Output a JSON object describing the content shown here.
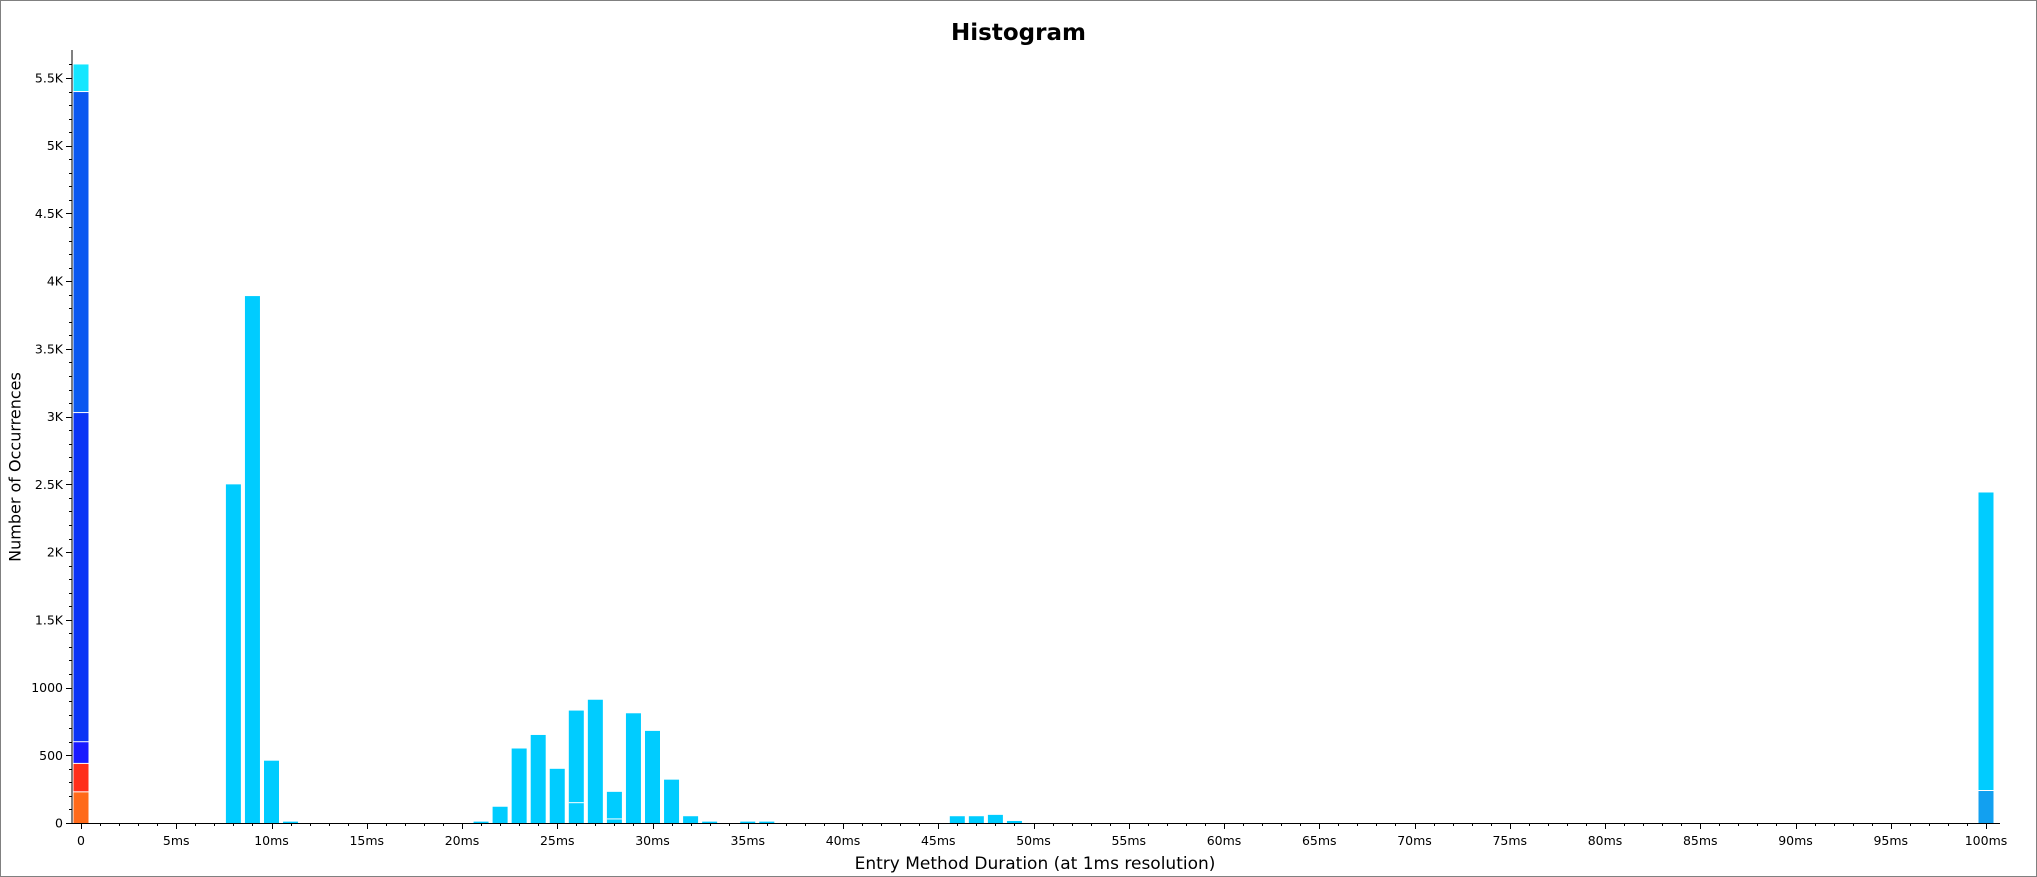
{
  "chart_data": {
    "type": "bar",
    "stacked": true,
    "title": "Histogram",
    "xlabel": "Entry Method Duration (at 1ms resolution)",
    "ylabel": "Number of Occurrences",
    "ylim": [
      0,
      5600
    ],
    "grid": false,
    "x_ticks": [
      "0",
      "5ms",
      "10ms",
      "15ms",
      "20ms",
      "25ms",
      "30ms",
      "35ms",
      "40ms",
      "45ms",
      "50ms",
      "55ms",
      "60ms",
      "65ms",
      "70ms",
      "75ms",
      "80ms",
      "85ms",
      "90ms",
      "95ms",
      "100ms"
    ],
    "y_ticks": [
      "0",
      "500",
      "1000",
      "1.5K",
      "2K",
      "2.5K",
      "3K",
      "3.5K",
      "4K",
      "4.5K",
      "5K",
      "5.5K"
    ],
    "y_tick_values": [
      0,
      500,
      1000,
      1500,
      2000,
      2500,
      3000,
      3500,
      4000,
      4500,
      5000,
      5500
    ],
    "bars": [
      {
        "x": 0,
        "segments": [
          {
            "value": 230,
            "color": "#ff6a1a"
          },
          {
            "value": 210,
            "color": "#ff2e1a"
          },
          {
            "value": 160,
            "color": "#1a1aff"
          },
          {
            "value": 2430,
            "color": "#0b34f5"
          },
          {
            "value": 2370,
            "color": "#0b58f0"
          },
          {
            "value": 200,
            "color": "#14e6ff"
          }
        ]
      },
      {
        "x": 8,
        "segments": [
          {
            "value": 2500,
            "color": "#00ccff"
          }
        ]
      },
      {
        "x": 9,
        "segments": [
          {
            "value": 3890,
            "color": "#00ccff"
          }
        ]
      },
      {
        "x": 10,
        "segments": [
          {
            "value": 460,
            "color": "#00ccff"
          }
        ]
      },
      {
        "x": 11,
        "segments": [
          {
            "value": 10,
            "color": "#00ccff"
          }
        ]
      },
      {
        "x": 21,
        "segments": [
          {
            "value": 10,
            "color": "#00ccff"
          }
        ]
      },
      {
        "x": 22,
        "segments": [
          {
            "value": 120,
            "color": "#00ccff"
          }
        ]
      },
      {
        "x": 23,
        "segments": [
          {
            "value": 550,
            "color": "#00ccff"
          }
        ]
      },
      {
        "x": 24,
        "segments": [
          {
            "value": 650,
            "color": "#00ccff"
          }
        ]
      },
      {
        "x": 25,
        "segments": [
          {
            "value": 400,
            "color": "#00ccff"
          }
        ]
      },
      {
        "x": 26,
        "segments": [
          {
            "value": 150,
            "color": "#00ccff"
          },
          {
            "value": 680,
            "color": "#00ccff"
          }
        ]
      },
      {
        "x": 27,
        "segments": [
          {
            "value": 910,
            "color": "#00ccff"
          }
        ]
      },
      {
        "x": 28,
        "segments": [
          {
            "value": 30,
            "color": "#00ccff"
          },
          {
            "value": 200,
            "color": "#00ccff"
          }
        ]
      },
      {
        "x": 29,
        "segments": [
          {
            "value": 810,
            "color": "#00ccff"
          }
        ]
      },
      {
        "x": 30,
        "segments": [
          {
            "value": 680,
            "color": "#00ccff"
          }
        ]
      },
      {
        "x": 31,
        "segments": [
          {
            "value": 320,
            "color": "#00ccff"
          }
        ]
      },
      {
        "x": 32,
        "segments": [
          {
            "value": 50,
            "color": "#00ccff"
          }
        ]
      },
      {
        "x": 33,
        "segments": [
          {
            "value": 10,
            "color": "#00ccff"
          }
        ]
      },
      {
        "x": 35,
        "segments": [
          {
            "value": 10,
            "color": "#00ccff"
          }
        ]
      },
      {
        "x": 36,
        "segments": [
          {
            "value": 10,
            "color": "#00ccff"
          }
        ]
      },
      {
        "x": 46,
        "segments": [
          {
            "value": 50,
            "color": "#00ccff"
          }
        ]
      },
      {
        "x": 47,
        "segments": [
          {
            "value": 50,
            "color": "#00ccff"
          }
        ]
      },
      {
        "x": 48,
        "segments": [
          {
            "value": 60,
            "color": "#00ccff"
          }
        ]
      },
      {
        "x": 49,
        "segments": [
          {
            "value": 15,
            "color": "#00ccff"
          }
        ]
      },
      {
        "x": 100,
        "segments": [
          {
            "value": 240,
            "color": "#12a0f0"
          },
          {
            "value": 2200,
            "color": "#00ccff"
          }
        ]
      }
    ]
  }
}
